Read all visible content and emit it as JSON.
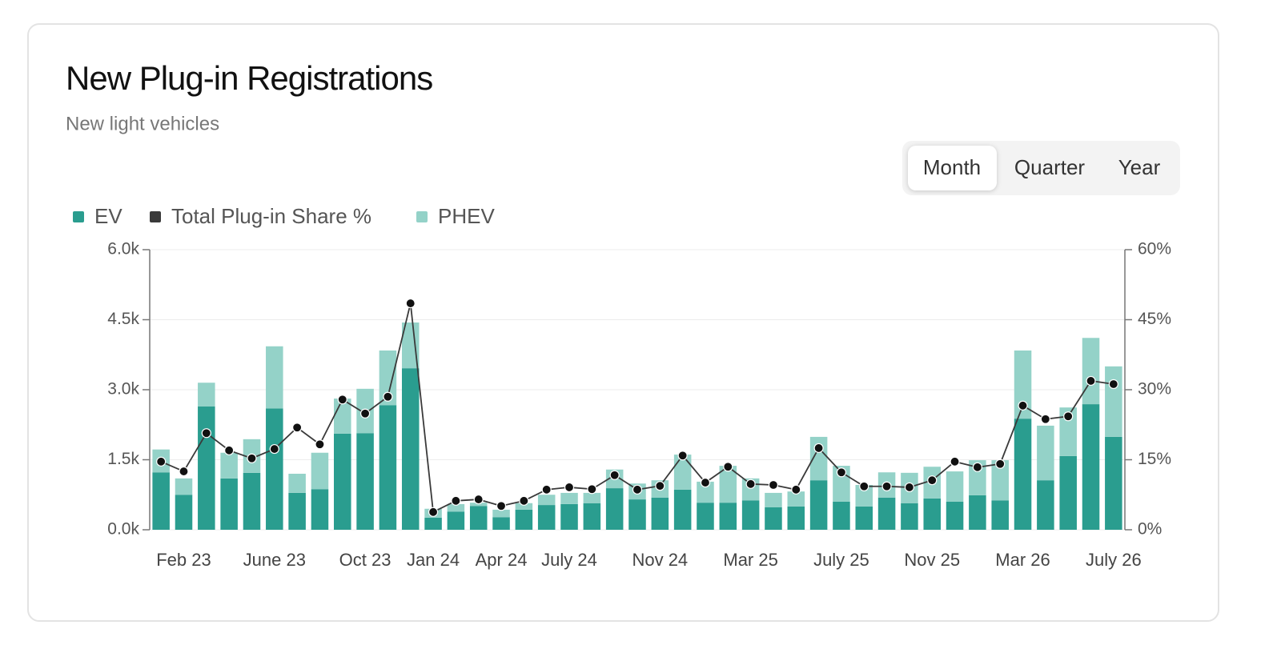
{
  "header": {
    "title": "New Plug-in Registrations",
    "subtitle": "New light vehicles"
  },
  "period_toggle": {
    "options": [
      "Month",
      "Quarter",
      "Year"
    ],
    "selected_index": 0
  },
  "chart_data": {
    "type": "bar",
    "stacked": true,
    "categories": [
      null,
      "Feb 23",
      null,
      null,
      null,
      "June 23",
      null,
      null,
      null,
      "Oct 23",
      null,
      null,
      "Jan 24",
      null,
      null,
      "Apr 24",
      null,
      null,
      "July 24",
      null,
      null,
      null,
      "Nov 24",
      null,
      null,
      null,
      "Mar 25",
      null,
      null,
      null,
      "July 25",
      null,
      null,
      null,
      "Nov 25",
      null,
      null,
      null,
      "Mar 26",
      null,
      null,
      null,
      "July 26"
    ],
    "series": [
      {
        "name": "EV",
        "type": "bar",
        "color": "#2a9d8f",
        "values": [
          1230,
          750,
          2640,
          1100,
          1220,
          2600,
          790,
          870,
          2060,
          2070,
          2670,
          3460,
          260,
          390,
          510,
          270,
          430,
          530,
          550,
          570,
          890,
          650,
          690,
          860,
          580,
          580,
          630,
          480,
          500,
          1060,
          600,
          500,
          690,
          570,
          670,
          600,
          740,
          630,
          2380,
          1060,
          1580,
          2690,
          1990
        ]
      },
      {
        "name": "Total Plug-in Share %",
        "type": "line",
        "axis": "y2",
        "color": "#3a3a3a",
        "values": [
          14.6,
          12.5,
          20.7,
          17,
          15.3,
          17.3,
          21.9,
          18.3,
          27.9,
          24.9,
          28.5,
          48.5,
          3.8,
          6.2,
          6.5,
          5.1,
          6.2,
          8.6,
          9.1,
          8.7,
          11.7,
          8.6,
          9.4,
          15.9,
          10.1,
          13.5,
          9.8,
          9.6,
          8.6,
          17.5,
          12.3,
          9.3,
          9.3,
          9.1,
          10.6,
          14.6,
          13.4,
          14.1,
          26.6,
          23.7,
          24.3,
          31.9,
          31.2
        ]
      },
      {
        "name": "PHEV",
        "type": "bar",
        "color": "#94d2c8",
        "values": [
          490,
          350,
          510,
          550,
          720,
          1330,
          410,
          780,
          750,
          950,
          1170,
          980,
          190,
          160,
          70,
          160,
          140,
          220,
          240,
          220,
          400,
          340,
          370,
          750,
          450,
          790,
          470,
          310,
          320,
          930,
          770,
          460,
          540,
          650,
          680,
          650,
          750,
          860,
          1460,
          1170,
          1040,
          1420,
          1510
        ]
      }
    ],
    "ylim": [
      0,
      6000
    ],
    "yticks": [
      {
        "value": 0,
        "label": "0.0k"
      },
      {
        "value": 1500,
        "label": "1.5k"
      },
      {
        "value": 3000,
        "label": "3.0k"
      },
      {
        "value": 4500,
        "label": "4.5k"
      },
      {
        "value": 6000,
        "label": "6.0k"
      }
    ],
    "y2lim": [
      0,
      60
    ],
    "y2ticks": [
      {
        "value": 0,
        "label": "0%"
      },
      {
        "value": 15,
        "label": "15%"
      },
      {
        "value": 30,
        "label": "30%"
      },
      {
        "value": 45,
        "label": "45%"
      },
      {
        "value": 60,
        "label": "60%"
      }
    ],
    "grid": true,
    "legend": "top-left"
  }
}
